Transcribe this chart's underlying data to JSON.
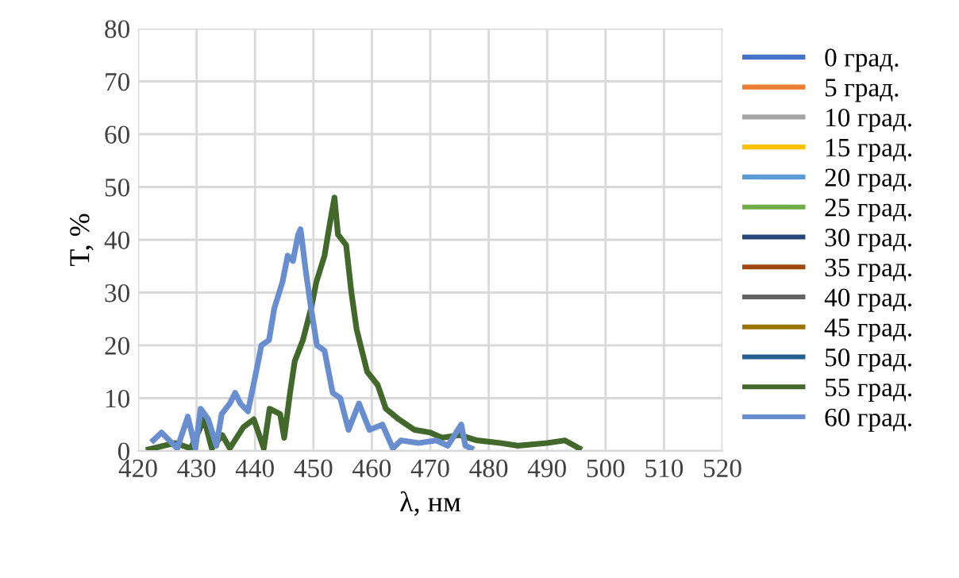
{
  "chart_data": {
    "type": "line",
    "xlabel": "λ, нм",
    "ylabel": "T, %",
    "xlim": [
      420,
      520
    ],
    "xticks": [
      420,
      430,
      440,
      450,
      460,
      470,
      480,
      490,
      500,
      510,
      520
    ],
    "ylim": [
      0,
      80
    ],
    "yticks": [
      0,
      10,
      20,
      30,
      40,
      50,
      60,
      70,
      80
    ],
    "grid": true,
    "legend": "right",
    "marker": "none",
    "line_style": "solid",
    "series": [
      {
        "name": "0 град.",
        "color": "#4472c4"
      },
      {
        "name": "5 град.",
        "color": "#ed7d31"
      },
      {
        "name": "10 град.",
        "color": "#a5a5a5"
      },
      {
        "name": "15 град.",
        "color": "#ffc000"
      },
      {
        "name": "20 град.",
        "color": "#5b9bd5"
      },
      {
        "name": "25 град.",
        "color": "#70ad47"
      },
      {
        "name": "30 град.",
        "color": "#264478"
      },
      {
        "name": "35 град.",
        "color": "#9e480e"
      },
      {
        "name": "40 град.",
        "color": "#636363"
      },
      {
        "name": "45 град.",
        "color": "#997300"
      },
      {
        "name": "50 град.",
        "color": "#255e91"
      },
      {
        "name": "55 град.",
        "color": "#43682b",
        "x": [
          421.8,
          426.3,
          429,
          431.3,
          432.6,
          434.4,
          435.7,
          438,
          439.8,
          441.5,
          442.5,
          444.3,
          445,
          446,
          446.8,
          448.2,
          449.6,
          450.5,
          451.9,
          452.8,
          453.6,
          454.2,
          455.6,
          456.5,
          457.4,
          459.2,
          461,
          462.4,
          464.6,
          467.3,
          470,
          472,
          475,
          478,
          482,
          485,
          490,
          493,
          495.5
        ],
        "values": [
          0.3,
          1.5,
          0.5,
          6,
          0.5,
          3,
          0.5,
          4.5,
          6,
          0.5,
          8,
          7,
          2.5,
          11,
          17,
          21,
          27,
          32,
          37,
          43,
          48,
          41,
          39,
          30,
          23,
          15,
          12.5,
          8,
          6,
          4,
          3.5,
          2.5,
          3,
          2,
          1.5,
          1,
          1.5,
          2,
          0.5
        ]
      },
      {
        "name": "60 град.",
        "color": "#698ed0",
        "x": [
          422.6,
          424,
          426.7,
          428.5,
          429.8,
          430.7,
          432,
          433.4,
          434.3,
          435.7,
          436.6,
          437.5,
          438.8,
          440.2,
          441.1,
          442.4,
          443.3,
          444.7,
          445.6,
          446.5,
          447.4,
          447.8,
          448.7,
          449.6,
          450.6,
          451.9,
          453.3,
          454.6,
          456,
          457.8,
          459.6,
          461.8,
          463.6,
          465,
          468,
          471,
          473,
          475.3,
          476,
          477
        ],
        "values": [
          2,
          3.5,
          0.5,
          6.5,
          0.5,
          8,
          6,
          1,
          7,
          9,
          11,
          9,
          7.5,
          15,
          20,
          21,
          27,
          32,
          37,
          36,
          41,
          42,
          34,
          27,
          20,
          19,
          11,
          10,
          4,
          9,
          4,
          5,
          0.5,
          2,
          1.5,
          2,
          1,
          5,
          1,
          0.5
        ]
      }
    ]
  }
}
